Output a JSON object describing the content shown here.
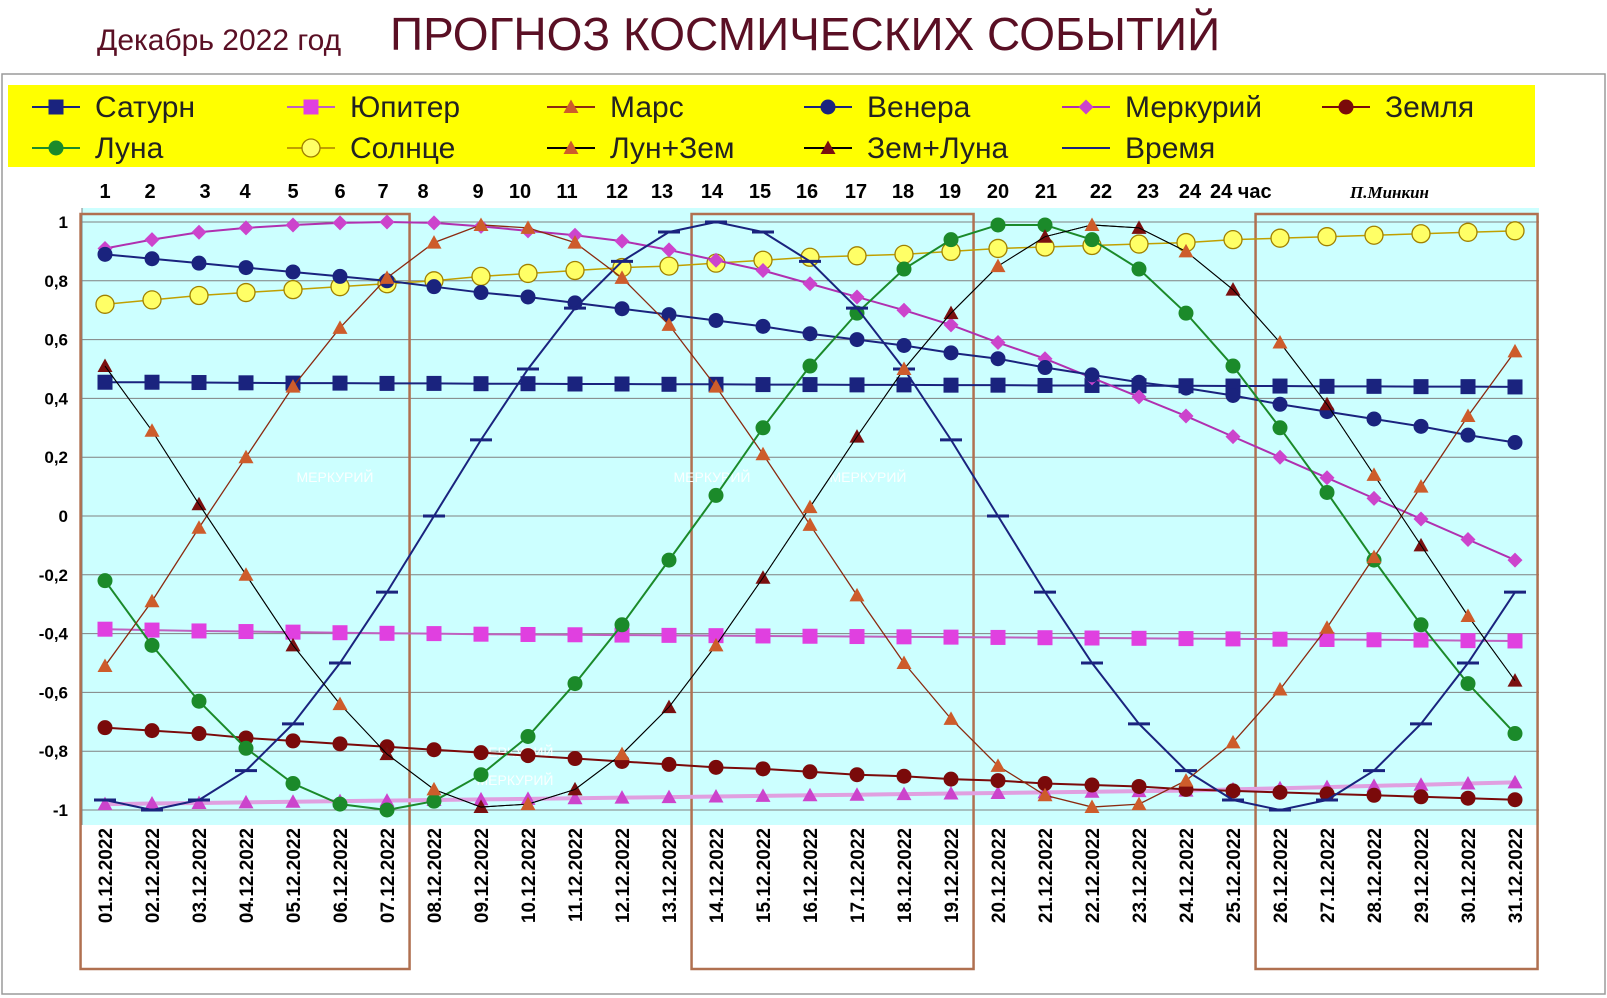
{
  "header": {
    "subtitle": "Декабрь 2022 год",
    "title": "ПРОГНОЗ КОСМИЧЕСКИХ СОБЫТИЙ"
  },
  "author": "П.Минкин",
  "hours_label": "24 час",
  "watermarks": [
    "МЕРКУРИЙ",
    "МЕРКУРИЙ",
    "МЕРКУРИЙ",
    "МЕРКУРИЙ",
    "МЕРКУРИЙ"
  ],
  "colors": {
    "legend_bg": "#ffff00",
    "plot_bg": "#ccffff",
    "title_color": "#5a0f24",
    "box_color": "#b07050"
  },
  "chart_data": {
    "type": "line",
    "title": "ПРОГНОЗ КОСМИЧЕСКИХ СОБЫТИЙ",
    "ylim": [
      -1,
      1
    ],
    "y_ticks": [
      "1",
      "0,8",
      "0,6",
      "0,4",
      "0,2",
      "0",
      "-0,2",
      "-0,4",
      "-0,6",
      "-0,8",
      "-1"
    ],
    "grid": true,
    "legend_position": "top",
    "hours": [
      "1",
      "2",
      "3",
      "4",
      "5",
      "6",
      "7",
      "8",
      "9",
      "10",
      "11",
      "12",
      "13",
      "14",
      "15",
      "16",
      "17",
      "18",
      "19",
      "20",
      "21",
      "22",
      "23",
      "24"
    ],
    "categories": [
      "01.12.2022",
      "02.12.2022",
      "03.12.2022",
      "04.12.2022",
      "05.12.2022",
      "06.12.2022",
      "07.12.2022",
      "08.12.2022",
      "09.12.2022",
      "10.12.2022",
      "11.12.2022",
      "12.12.2022",
      "13.12.2022",
      "14.12.2022",
      "15.12.2022",
      "16.12.2022",
      "17.12.2022",
      "18.12.2022",
      "19.12.2022",
      "20.12.2022",
      "21.12.2022",
      "22.12.2022",
      "23.12.2022",
      "24.12.2022",
      "25.12.2022",
      "26.12.2022",
      "27.12.2022",
      "28.12.2022",
      "29.12.2022",
      "30.12.2022",
      "31.12.2022"
    ],
    "highlight_boxes": [
      [
        "01.12.2022",
        "07.12.2022"
      ],
      [
        "14.12.2022",
        "19.12.2022"
      ],
      [
        "26.12.2022",
        "31.12.2022"
      ]
    ],
    "series": [
      {
        "name": "Сатурн",
        "color": "#1a237e",
        "marker": "square",
        "values": [
          0.455,
          0.455,
          0.454,
          0.453,
          0.452,
          0.452,
          0.451,
          0.451,
          0.45,
          0.45,
          0.449,
          0.449,
          0.448,
          0.448,
          0.447,
          0.447,
          0.446,
          0.446,
          0.445,
          0.445,
          0.444,
          0.444,
          0.443,
          0.443,
          0.442,
          0.442,
          0.441,
          0.441,
          0.44,
          0.44,
          0.439
        ]
      },
      {
        "name": "Юпитер",
        "color": "#e040e0",
        "marker": "square",
        "values": [
          -0.385,
          -0.388,
          -0.391,
          -0.393,
          -0.395,
          -0.397,
          -0.399,
          -0.4,
          -0.402,
          -0.403,
          -0.404,
          -0.405,
          -0.406,
          -0.407,
          -0.408,
          -0.409,
          -0.41,
          -0.411,
          -0.412,
          -0.413,
          -0.414,
          -0.415,
          -0.416,
          -0.417,
          -0.418,
          -0.419,
          -0.42,
          -0.421,
          -0.422,
          -0.424,
          -0.425
        ]
      },
      {
        "name": "Марс",
        "color": "#cd5c2b",
        "marker": "triangle",
        "values": [
          -0.51,
          -0.29,
          -0.04,
          0.2,
          0.44,
          0.64,
          0.81,
          0.93,
          0.99,
          0.98,
          0.93,
          0.81,
          0.65,
          0.44,
          0.21,
          -0.03,
          -0.27,
          -0.5,
          -0.69,
          -0.85,
          -0.95,
          -0.99,
          -0.98,
          -0.9,
          -0.77,
          -0.59,
          -0.38,
          -0.14,
          0.1,
          0.34,
          0.56
        ]
      },
      {
        "name": "Венера",
        "color": "#1a237e",
        "marker": "circle",
        "values": [
          0.89,
          0.875,
          0.86,
          0.845,
          0.83,
          0.815,
          0.8,
          0.78,
          0.76,
          0.745,
          0.725,
          0.705,
          0.685,
          0.665,
          0.645,
          0.62,
          0.6,
          0.58,
          0.555,
          0.535,
          0.505,
          0.48,
          0.455,
          0.435,
          0.41,
          0.38,
          0.355,
          0.33,
          0.305,
          0.275,
          0.25
        ]
      },
      {
        "name": "Меркурий",
        "color": "#cc44cc",
        "marker": "diamond",
        "values": [
          0.91,
          0.94,
          0.965,
          0.98,
          0.99,
          0.997,
          1.0,
          0.997,
          0.985,
          0.97,
          0.955,
          0.935,
          0.905,
          0.87,
          0.835,
          0.79,
          0.745,
          0.7,
          0.65,
          0.59,
          0.535,
          0.47,
          0.405,
          0.34,
          0.27,
          0.2,
          0.13,
          0.06,
          -0.01,
          -0.08,
          -0.15
        ]
      },
      {
        "name": "Земля",
        "color": "#7a0a0a",
        "marker": "circle",
        "values": [
          -0.72,
          -0.73,
          -0.74,
          -0.755,
          -0.765,
          -0.775,
          -0.785,
          -0.795,
          -0.805,
          -0.815,
          -0.825,
          -0.835,
          -0.845,
          -0.855,
          -0.86,
          -0.87,
          -0.88,
          -0.885,
          -0.895,
          -0.9,
          -0.91,
          -0.915,
          -0.92,
          -0.93,
          -0.935,
          -0.94,
          -0.945,
          -0.95,
          -0.955,
          -0.96,
          -0.965
        ]
      },
      {
        "name": "Луна",
        "color": "#1b8a2a",
        "marker": "circle",
        "values": [
          -0.22,
          -0.44,
          -0.63,
          -0.79,
          -0.91,
          -0.98,
          -1.0,
          -0.97,
          -0.88,
          -0.75,
          -0.57,
          -0.37,
          -0.15,
          0.07,
          0.3,
          0.51,
          0.69,
          0.84,
          0.94,
          0.99,
          0.99,
          0.94,
          0.84,
          0.69,
          0.51,
          0.3,
          0.08,
          -0.15,
          -0.37,
          -0.57,
          -0.74
        ]
      },
      {
        "name": "Солнце",
        "color": "#e8d000",
        "marker": "circle-open",
        "values": [
          0.72,
          0.735,
          0.75,
          0.76,
          0.77,
          0.78,
          0.79,
          0.8,
          0.815,
          0.825,
          0.835,
          0.845,
          0.85,
          0.86,
          0.87,
          0.88,
          0.885,
          0.89,
          0.9,
          0.91,
          0.915,
          0.92,
          0.925,
          0.93,
          0.94,
          0.945,
          0.95,
          0.955,
          0.96,
          0.965,
          0.97
        ]
      },
      {
        "name": "Лун+Зем",
        "color": "#cd5c2b",
        "marker": "triangle",
        "values": [
          0.51,
          0.29,
          0.04,
          -0.2,
          -0.44,
          -0.64,
          -0.81,
          -0.93,
          -0.99,
          -0.98,
          -0.93,
          -0.81,
          -0.65,
          -0.44,
          -0.21,
          0.03,
          0.27,
          0.5,
          0.69,
          0.85,
          0.95,
          0.99,
          0.98,
          0.9,
          0.77,
          0.59,
          0.38,
          0.14,
          -0.1,
          -0.34,
          -0.56
        ]
      },
      {
        "name": "Зем+Луна",
        "color": "#7a1010",
        "marker": "triangle",
        "values": [
          0.51,
          0.29,
          0.04,
          -0.2,
          -0.44,
          -0.64,
          -0.81,
          -0.93,
          -0.99,
          -0.98,
          -0.93,
          -0.81,
          -0.65,
          -0.44,
          -0.21,
          0.03,
          0.27,
          0.5,
          0.69,
          0.85,
          0.95,
          0.99,
          0.98,
          0.9,
          0.77,
          0.59,
          0.38,
          0.14,
          -0.1,
          -0.34,
          -0.56
        ]
      },
      {
        "name": "Время",
        "color": "#1a237e",
        "marker": "dash",
        "values": [
          -0.966,
          -1.0,
          -0.966,
          -0.866,
          -0.707,
          -0.5,
          -0.259,
          0.0,
          0.259,
          0.5,
          0.707,
          0.866,
          0.966,
          1.0,
          0.966,
          0.866,
          0.707,
          0.5,
          0.259,
          0.0,
          -0.259,
          -0.5,
          -0.707,
          -0.866,
          -0.966,
          -1.0,
          -0.966,
          -0.866,
          -0.707,
          -0.5,
          -0.259
        ]
      }
    ],
    "extra_marker_series": [
      {
        "color": "#cc44cc",
        "marker": "triangle",
        "values": [
          -0.98,
          -0.978,
          -0.976,
          -0.974,
          -0.972,
          -0.97,
          -0.968,
          -0.966,
          -0.964,
          -0.962,
          -0.96,
          -0.958,
          -0.956,
          -0.954,
          -0.952,
          -0.95,
          -0.948,
          -0.946,
          -0.944,
          -0.942,
          -0.94,
          -0.938,
          -0.936,
          -0.934,
          -0.93,
          -0.926,
          -0.922,
          -0.918,
          -0.914,
          -0.91,
          -0.906
        ]
      }
    ]
  }
}
